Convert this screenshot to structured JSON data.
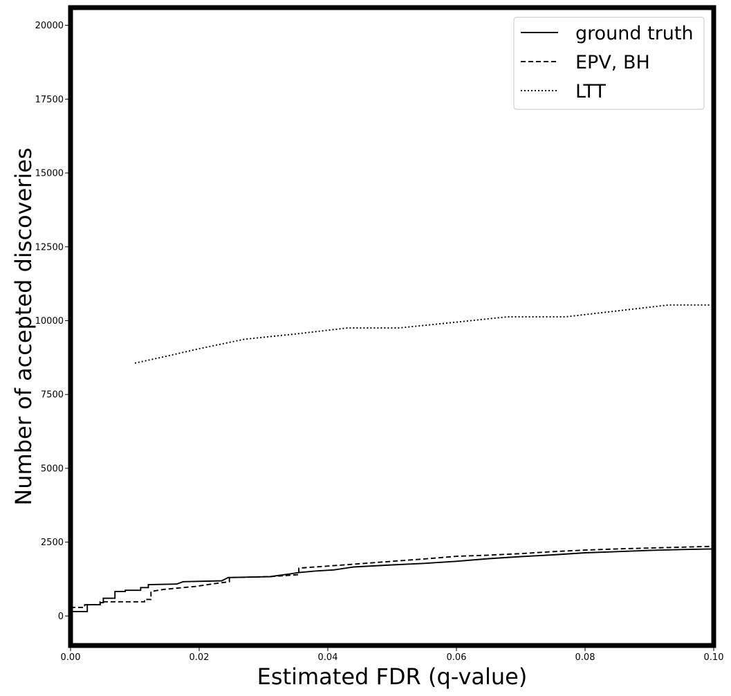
{
  "chart_data": {
    "type": "line",
    "title": "",
    "xlabel": "Estimated FDR (q-value)",
    "ylabel": "Number of accepted discoveries",
    "xlim": [
      0.0,
      0.1
    ],
    "ylim": [
      -1000,
      20600
    ],
    "x_ticks": [
      0.0,
      0.02,
      0.04,
      0.06,
      0.08,
      0.1
    ],
    "x_tick_labels": [
      "0.00",
      "0.02",
      "0.04",
      "0.06",
      "0.08",
      "0.10"
    ],
    "y_ticks": [
      0,
      2500,
      5000,
      7500,
      10000,
      12500,
      15000,
      17500,
      20000
    ],
    "y_tick_labels": [
      "0",
      "2500",
      "5000",
      "7500",
      "10000",
      "12500",
      "15000",
      "17500",
      "20000"
    ],
    "grid": false,
    "legend_position": "top-right",
    "series": [
      {
        "name": "ground truth",
        "line_style": "solid",
        "color": "#000000",
        "points": [
          [
            0.0,
            150
          ],
          [
            0.0026,
            150
          ],
          [
            0.0026,
            380
          ],
          [
            0.0046,
            380
          ],
          [
            0.0046,
            450
          ],
          [
            0.0051,
            450
          ],
          [
            0.0051,
            600
          ],
          [
            0.0069,
            600
          ],
          [
            0.0069,
            830
          ],
          [
            0.0085,
            830
          ],
          [
            0.0085,
            870
          ],
          [
            0.0109,
            870
          ],
          [
            0.0109,
            960
          ],
          [
            0.0121,
            960
          ],
          [
            0.0121,
            1060
          ],
          [
            0.0165,
            1080
          ],
          [
            0.0175,
            1160
          ],
          [
            0.0235,
            1190
          ],
          [
            0.0245,
            1300
          ],
          [
            0.031,
            1330
          ],
          [
            0.034,
            1420
          ],
          [
            0.0355,
            1470
          ],
          [
            0.038,
            1520
          ],
          [
            0.041,
            1560
          ],
          [
            0.044,
            1660
          ],
          [
            0.05,
            1730
          ],
          [
            0.055,
            1780
          ],
          [
            0.06,
            1850
          ],
          [
            0.065,
            1940
          ],
          [
            0.07,
            2010
          ],
          [
            0.075,
            2070
          ],
          [
            0.08,
            2140
          ],
          [
            0.085,
            2180
          ],
          [
            0.09,
            2220
          ],
          [
            0.095,
            2250
          ],
          [
            0.1,
            2270
          ]
        ]
      },
      {
        "name": "EPV, BH",
        "line_style": "dashed",
        "color": "#000000",
        "points": [
          [
            0.0,
            290
          ],
          [
            0.0022,
            290
          ],
          [
            0.0022,
            380
          ],
          [
            0.0046,
            380
          ],
          [
            0.0046,
            480
          ],
          [
            0.0115,
            480
          ],
          [
            0.0115,
            560
          ],
          [
            0.0125,
            560
          ],
          [
            0.0125,
            830
          ],
          [
            0.0145,
            900
          ],
          [
            0.0195,
            1000
          ],
          [
            0.0225,
            1100
          ],
          [
            0.0247,
            1160
          ],
          [
            0.0247,
            1300
          ],
          [
            0.031,
            1330
          ],
          [
            0.0355,
            1400
          ],
          [
            0.0355,
            1620
          ],
          [
            0.04,
            1690
          ],
          [
            0.045,
            1770
          ],
          [
            0.05,
            1850
          ],
          [
            0.055,
            1930
          ],
          [
            0.06,
            2020
          ],
          [
            0.065,
            2060
          ],
          [
            0.07,
            2110
          ],
          [
            0.075,
            2180
          ],
          [
            0.08,
            2230
          ],
          [
            0.085,
            2270
          ],
          [
            0.09,
            2300
          ],
          [
            0.095,
            2330
          ],
          [
            0.1,
            2360
          ]
        ]
      },
      {
        "name": "LTT",
        "line_style": "dotted",
        "color": "#000000",
        "points": [
          [
            0.01,
            8560
          ],
          [
            0.015,
            8800
          ],
          [
            0.02,
            9050
          ],
          [
            0.027,
            9370
          ],
          [
            0.035,
            9550
          ],
          [
            0.043,
            9750
          ],
          [
            0.048,
            9750
          ],
          [
            0.051,
            9750
          ],
          [
            0.06,
            9950
          ],
          [
            0.068,
            10130
          ],
          [
            0.077,
            10130
          ],
          [
            0.085,
            10330
          ],
          [
            0.093,
            10530
          ],
          [
            0.1,
            10530
          ]
        ]
      }
    ]
  }
}
